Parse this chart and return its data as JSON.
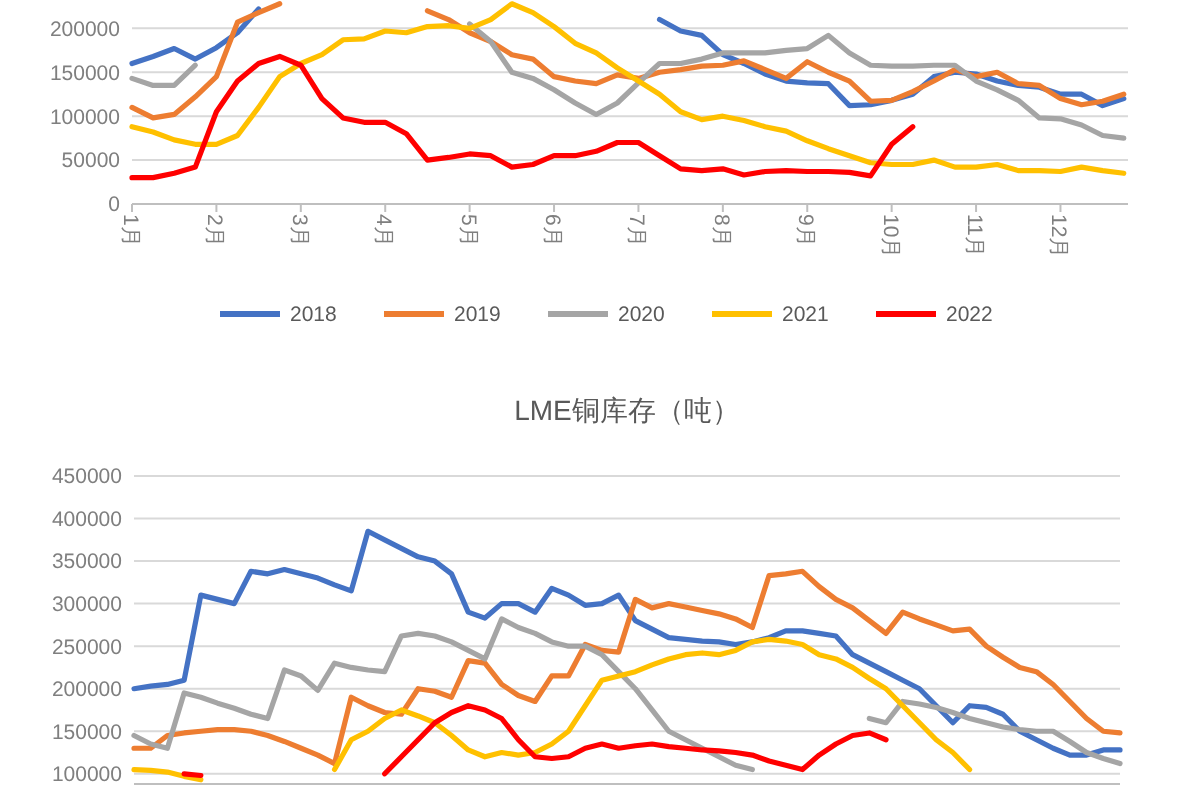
{
  "chart_data": [
    {
      "type": "line",
      "grid": "y",
      "legend": "bottom",
      "line_style": "solid",
      "x": [
        1,
        1.25,
        1.5,
        1.75,
        2,
        2.25,
        2.5,
        2.75,
        3,
        3.25,
        3.5,
        3.75,
        4,
        4.25,
        4.5,
        4.75,
        5,
        5.25,
        5.5,
        5.75,
        6,
        6.25,
        6.5,
        6.75,
        7,
        7.25,
        7.5,
        7.75,
        8,
        8.25,
        8.5,
        8.75,
        9,
        9.25,
        9.5,
        9.75,
        10,
        10.25,
        10.5,
        10.75,
        11,
        11.25,
        11.5,
        11.75,
        12,
        12.25,
        12.5,
        12.75
      ],
      "xlim": [
        1,
        12.8
      ],
      "xticks": [
        {
          "value": 1,
          "label": "1月"
        },
        {
          "value": 2,
          "label": "2月"
        },
        {
          "value": 3,
          "label": "3月"
        },
        {
          "value": 4,
          "label": "4月"
        },
        {
          "value": 5,
          "label": "5月"
        },
        {
          "value": 6,
          "label": "6月"
        },
        {
          "value": 7,
          "label": "7月"
        },
        {
          "value": 8,
          "label": "8月"
        },
        {
          "value": 9,
          "label": "9月"
        },
        {
          "value": 10,
          "label": "10月"
        },
        {
          "value": 11,
          "label": "11月"
        },
        {
          "value": 12,
          "label": "12月"
        }
      ],
      "ylim": [
        0,
        230000
      ],
      "yticks": [
        0,
        50000,
        100000,
        150000,
        200000
      ],
      "series": [
        {
          "name": "2018",
          "color": "#4472c4",
          "values": [
            160000,
            168000,
            177000,
            165000,
            178000,
            195000,
            222000,
            null,
            null,
            null,
            null,
            null,
            null,
            null,
            null,
            null,
            null,
            null,
            null,
            null,
            null,
            null,
            null,
            null,
            null,
            210000,
            197000,
            192000,
            170000,
            160000,
            148000,
            140000,
            138000,
            137000,
            112000,
            113000,
            118000,
            125000,
            145000,
            150000,
            148000,
            140000,
            135000,
            133000,
            125000,
            125000,
            112000,
            120000
          ]
        },
        {
          "name": "2019",
          "color": "#ed7d31",
          "values": [
            110000,
            98000,
            102000,
            122000,
            145000,
            207000,
            218000,
            228000,
            null,
            null,
            null,
            null,
            null,
            null,
            220000,
            210000,
            195000,
            185000,
            170000,
            165000,
            145000,
            140000,
            137000,
            147000,
            143000,
            150000,
            153000,
            157000,
            158000,
            163000,
            153000,
            143000,
            162000,
            150000,
            140000,
            117000,
            118000,
            128000,
            140000,
            153000,
            145000,
            150000,
            137000,
            135000,
            120000,
            113000,
            117000,
            125000
          ]
        },
        {
          "name": "2020",
          "color": "#a5a5a5",
          "values": [
            143000,
            135000,
            135000,
            158000,
            null,
            null,
            null,
            null,
            null,
            null,
            null,
            null,
            null,
            null,
            null,
            null,
            205000,
            185000,
            150000,
            143000,
            130000,
            115000,
            102000,
            115000,
            138000,
            160000,
            160000,
            165000,
            172000,
            172000,
            172000,
            175000,
            177000,
            192000,
            172000,
            158000,
            157000,
            157000,
            158000,
            158000,
            140000,
            130000,
            118000,
            98000,
            97000,
            90000,
            78000,
            75000
          ]
        },
        {
          "name": "2021",
          "color": "#ffc000",
          "values": [
            88000,
            82000,
            73000,
            68000,
            68000,
            78000,
            110000,
            145000,
            160000,
            170000,
            187000,
            188000,
            197000,
            195000,
            202000,
            203000,
            200000,
            210000,
            228000,
            218000,
            202000,
            183000,
            172000,
            155000,
            140000,
            125000,
            105000,
            96000,
            100000,
            95000,
            88000,
            83000,
            72000,
            63000,
            55000,
            47000,
            45000,
            45000,
            50000,
            42000,
            42000,
            45000,
            38000,
            38000,
            37000,
            42000,
            38000,
            35000
          ]
        },
        {
          "name": "2022",
          "color": "#ff0000",
          "values": [
            30000,
            30000,
            35000,
            42000,
            105000,
            140000,
            160000,
            168000,
            158000,
            120000,
            98000,
            93000,
            93000,
            80000,
            50000,
            53000,
            57000,
            55000,
            42000,
            45000,
            55000,
            55000,
            60000,
            70000,
            70000,
            55000,
            40000,
            38000,
            40000,
            33000,
            37000,
            38000,
            37000,
            37000,
            36000,
            32000,
            68000,
            88000,
            null,
            null,
            null,
            null,
            null,
            null,
            null,
            null,
            null,
            null
          ]
        }
      ]
    },
    {
      "type": "line",
      "title": "LME铜库存（吨）",
      "grid": "y",
      "tick_labels": "y",
      "line_style": "solid",
      "categories": [
        null,
        null,
        null,
        null,
        null,
        null,
        null,
        null,
        null,
        null,
        null,
        null,
        null,
        null,
        null,
        null,
        null,
        null,
        null,
        null,
        null,
        null,
        null,
        null,
        null,
        null,
        null,
        null,
        null,
        null,
        null,
        null,
        null,
        null,
        null,
        null,
        null,
        null,
        null,
        null,
        null,
        null,
        null,
        null,
        null,
        null,
        null,
        null,
        null,
        null,
        null,
        null,
        null,
        null,
        null,
        null,
        null,
        null,
        null,
        null
      ],
      "ylim": [
        88000,
        450000
      ],
      "yticks": [
        100000,
        150000,
        200000,
        250000,
        300000,
        350000,
        400000,
        450000
      ],
      "series": [
        {
          "color": "#4472c4",
          "values": [
            200000,
            203000,
            205000,
            210000,
            310000,
            305000,
            300000,
            338000,
            335000,
            340000,
            335000,
            330000,
            322000,
            315000,
            385000,
            375000,
            365000,
            355000,
            350000,
            335000,
            290000,
            283000,
            300000,
            300000,
            290000,
            318000,
            310000,
            298000,
            300000,
            310000,
            280000,
            270000,
            260000,
            258000,
            256000,
            255000,
            252000,
            255000,
            260000,
            268000,
            268000,
            265000,
            262000,
            240000,
            230000,
            220000,
            210000,
            200000,
            180000,
            160000,
            180000,
            178000,
            170000,
            150000,
            140000,
            130000,
            122000,
            122000,
            128000,
            128000
          ]
        },
        {
          "color": "#ed7d31",
          "values": [
            130000,
            130000,
            145000,
            148000,
            150000,
            152000,
            152000,
            150000,
            145000,
            138000,
            130000,
            122000,
            112000,
            190000,
            180000,
            172000,
            170000,
            200000,
            197000,
            190000,
            233000,
            230000,
            205000,
            192000,
            185000,
            215000,
            215000,
            252000,
            245000,
            243000,
            305000,
            295000,
            300000,
            296000,
            292000,
            288000,
            282000,
            272000,
            333000,
            335000,
            338000,
            320000,
            305000,
            295000,
            280000,
            265000,
            290000,
            282000,
            275000,
            268000,
            270000,
            250000,
            237000,
            225000,
            220000,
            205000,
            185000,
            165000,
            150000,
            148000
          ]
        },
        {
          "color": "#a5a5a5",
          "values": [
            145000,
            135000,
            130000,
            195000,
            190000,
            183000,
            177000,
            170000,
            165000,
            222000,
            215000,
            198000,
            230000,
            225000,
            222000,
            220000,
            262000,
            265000,
            262000,
            255000,
            245000,
            235000,
            282000,
            272000,
            265000,
            255000,
            250000,
            250000,
            240000,
            220000,
            200000,
            175000,
            150000,
            140000,
            130000,
            120000,
            110000,
            105000,
            null,
            null,
            null,
            null,
            null,
            null,
            165000,
            160000,
            185000,
            182000,
            178000,
            172000,
            165000,
            160000,
            155000,
            152000,
            150000,
            150000,
            138000,
            125000,
            118000,
            112000
          ]
        },
        {
          "color": "#ffc000",
          "values": [
            105000,
            104000,
            102000,
            97000,
            93000,
            null,
            null,
            null,
            null,
            null,
            null,
            null,
            105000,
            140000,
            150000,
            165000,
            175000,
            168000,
            160000,
            145000,
            128000,
            120000,
            125000,
            122000,
            125000,
            135000,
            150000,
            180000,
            210000,
            215000,
            220000,
            228000,
            235000,
            240000,
            242000,
            240000,
            245000,
            255000,
            258000,
            256000,
            252000,
            240000,
            235000,
            225000,
            212000,
            200000,
            180000,
            160000,
            140000,
            125000,
            105000,
            null,
            null,
            null,
            null,
            null,
            null,
            null,
            null,
            null
          ]
        },
        {
          "color": "#ff0000",
          "values": [
            null,
            null,
            null,
            100000,
            98000,
            null,
            null,
            null,
            null,
            null,
            null,
            null,
            null,
            null,
            null,
            100000,
            120000,
            140000,
            160000,
            172000,
            180000,
            175000,
            165000,
            140000,
            120000,
            118000,
            120000,
            130000,
            135000,
            130000,
            133000,
            135000,
            132000,
            130000,
            128000,
            127000,
            125000,
            122000,
            115000,
            110000,
            105000,
            122000,
            135000,
            145000,
            148000,
            140000,
            null,
            null,
            null,
            null,
            null,
            null,
            null,
            null,
            null,
            null,
            null,
            null,
            null,
            null
          ]
        }
      ]
    }
  ]
}
